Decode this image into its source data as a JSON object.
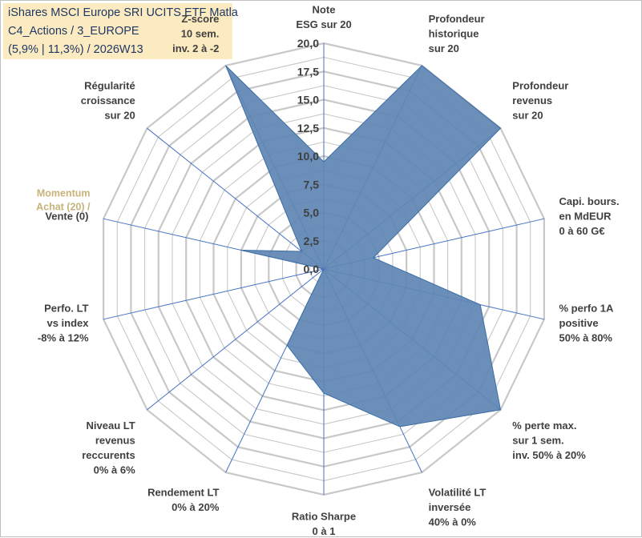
{
  "chart_data": {
    "type": "radar",
    "title": [
      "iShares MSCI Europe SRI UCITS ETF Matla",
      "C4_Actions / 3_EUROPE",
      "(5,9% | 11,3%) / 2026W13"
    ],
    "momentum_label": [
      "Momentum",
      "Achat (20) /"
    ],
    "rmax": 20,
    "ticks": [
      "0,0",
      "2,5",
      "5,0",
      "7,5",
      "10,0",
      "12,5",
      "15,0",
      "17,5",
      "20,0"
    ],
    "tick_values": [
      0,
      2.5,
      5,
      7.5,
      10,
      12.5,
      15,
      17.5,
      20
    ],
    "axes": [
      {
        "label": [
          "Note",
          "ESG sur 20"
        ],
        "value": 9.5
      },
      {
        "label": [
          "Profondeur",
          "historique",
          "sur 20"
        ],
        "value": 20
      },
      {
        "label": [
          "Profondeur",
          "revenus",
          "sur 20"
        ],
        "value": 20
      },
      {
        "label": [
          "Capi. bours.",
          "en MdEUR",
          "0 à 60 G€"
        ],
        "value": 4.5
      },
      {
        "label": [
          "% perfo 1A",
          "positive",
          "50% à 80%"
        ],
        "value": 14.2
      },
      {
        "label": [
          "% perte max.",
          "sur 1 sem.",
          "inv. 50% à 20%"
        ],
        "value": 20
      },
      {
        "label": [
          "Volatilité LT",
          "inversée",
          "40% à 0%"
        ],
        "value": 15.5
      },
      {
        "label": [
          "Ratio Sharpe",
          "0 à 1"
        ],
        "value": 11
      },
      {
        "label": [
          "Rendement LT",
          "0% à 20%"
        ],
        "value": 7.5
      },
      {
        "label": [
          "Niveau LT",
          "revenus",
          "reccurents",
          "0% à 6%"
        ],
        "value": 0
      },
      {
        "label": [
          "Perfo. LT",
          "vs index",
          "-8% à 12%"
        ],
        "value": 0
      },
      {
        "label": [
          "Vente (0)"
        ],
        "value": 7.5
      },
      {
        "label": [
          "Régularité",
          "croissance",
          "sur 20"
        ],
        "value": 2.5
      },
      {
        "label": [
          "Z-score",
          "10 sem.",
          "inv. 2 à -2"
        ],
        "value": 20
      }
    ],
    "colors": {
      "fill": "#5e86b3",
      "stroke": "#3a6ea5",
      "grid": "#c8c8c8",
      "spoke": "#4472c4"
    }
  }
}
